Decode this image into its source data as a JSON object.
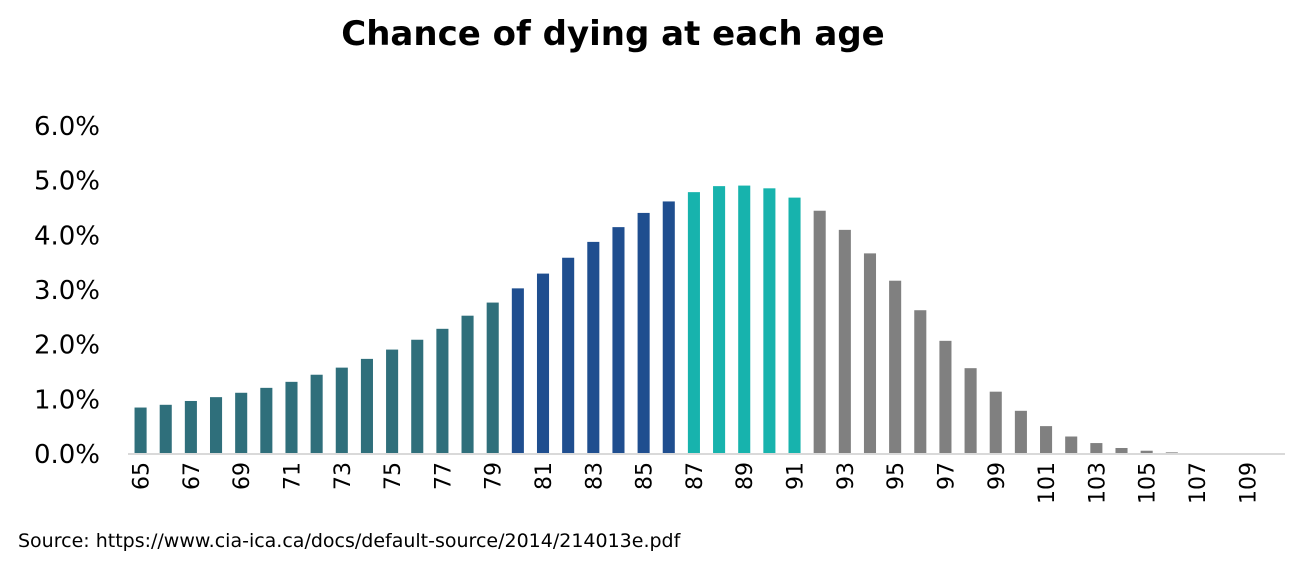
{
  "chart_data": {
    "type": "bar",
    "title": "Chance of dying at each age",
    "xlabel": "",
    "ylabel": "",
    "ylim": [
      0,
      6.0
    ],
    "y_ticks": [
      "0.0%",
      "1.0%",
      "2.0%",
      "3.0%",
      "4.0%",
      "5.0%",
      "6.0%"
    ],
    "grid": false,
    "legend": "none",
    "categories": [
      "65",
      "66",
      "67",
      "68",
      "69",
      "70",
      "71",
      "72",
      "73",
      "74",
      "75",
      "76",
      "77",
      "78",
      "79",
      "80",
      "81",
      "82",
      "83",
      "84",
      "85",
      "86",
      "87",
      "88",
      "89",
      "90",
      "91",
      "92",
      "93",
      "94",
      "95",
      "96",
      "97",
      "98",
      "99",
      "100",
      "101",
      "102",
      "103",
      "104",
      "105",
      "106",
      "107",
      "108",
      "109",
      "110"
    ],
    "x_tick_labels": [
      "65",
      "67",
      "69",
      "71",
      "73",
      "75",
      "77",
      "79",
      "81",
      "83",
      "85",
      "87",
      "89",
      "91",
      "93",
      "95",
      "97",
      "99",
      "101",
      "103",
      "105",
      "107",
      "109"
    ],
    "values": [
      0.85,
      0.9,
      0.97,
      1.04,
      1.12,
      1.21,
      1.32,
      1.45,
      1.58,
      1.74,
      1.91,
      2.09,
      2.29,
      2.53,
      2.77,
      3.03,
      3.3,
      3.59,
      3.88,
      4.15,
      4.41,
      4.62,
      4.79,
      4.9,
      4.91,
      4.86,
      4.69,
      4.45,
      4.1,
      3.67,
      3.17,
      2.63,
      2.07,
      1.57,
      1.14,
      0.79,
      0.51,
      0.32,
      0.2,
      0.11,
      0.06,
      0.03,
      0.01,
      0.005,
      0.002,
      0.001
    ],
    "value_unit": "%",
    "colors": {
      "65-79": "#2f6f7b",
      "80-86": "#1f4e8f",
      "87-91": "#17b3ad",
      "92-110": "#808080",
      "axis": "#d9d9d9"
    }
  },
  "source": "Source: https://www.cia-ica.ca/docs/default-source/2014/214013e.pdf"
}
